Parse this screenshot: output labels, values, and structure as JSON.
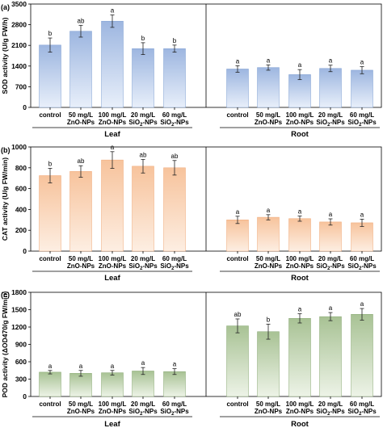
{
  "chart_data": [
    {
      "type": "bar",
      "panel_label": "(a)",
      "ylabel": "SOD activity (U/g FW/h)",
      "ylim": [
        0,
        3500
      ],
      "yticks": [
        0,
        700,
        1400,
        2100,
        2800,
        3500
      ],
      "ytick_labels": [
        "0",
        "700",
        "1400",
        "2100",
        "2800",
        "3500"
      ],
      "bar_color": "#9db6e0",
      "bar_color_light": "#e8effa",
      "bar_edge": "#7f9fd2",
      "groups": [
        {
          "name": "Leaf",
          "categories": [
            {
              "line1": "control",
              "line2": ""
            },
            {
              "line1": "50 mg/L",
              "line2": "ZnO-NPs"
            },
            {
              "line1": "100 mg/L",
              "line2": "ZnO-NPs"
            },
            {
              "line1": "20 mg/L",
              "line2": "SiO",
              "line2_sub": "2",
              "line2_tail": "-NPs"
            },
            {
              "line1": "60 mg/L",
              "line2": "SiO",
              "line2_sub": "2",
              "line2_tail": "-NPs"
            }
          ],
          "values": [
            2110,
            2580,
            2920,
            1990,
            1990
          ],
          "errors": [
            240,
            200,
            210,
            200,
            120
          ],
          "letters": [
            "b",
            "ab",
            "a",
            "b",
            "b"
          ]
        },
        {
          "name": "Root",
          "categories": [
            {
              "line1": "control",
              "line2": ""
            },
            {
              "line1": "50 mg/L",
              "line2": "ZnO-NPs"
            },
            {
              "line1": "100 mg/L",
              "line2": "ZnO-NPs"
            },
            {
              "line1": "20 mg/L",
              "line2": "SiO",
              "line2_sub": "2",
              "line2_tail": "-NPs"
            },
            {
              "line1": "60 mg/L",
              "line2": "SiO",
              "line2_sub": "2",
              "line2_tail": "-NPs"
            }
          ],
          "values": [
            1300,
            1350,
            1110,
            1320,
            1260
          ],
          "errors": [
            110,
            90,
            170,
            110,
            120
          ],
          "letters": [
            "a",
            "a",
            "a",
            "a",
            "a"
          ]
        }
      ]
    },
    {
      "type": "bar",
      "panel_label": "(b)",
      "ylabel": "CAT activity (U/g FW/min)",
      "ylim": [
        0,
        1000
      ],
      "yticks": [
        0,
        200,
        400,
        600,
        800,
        1000
      ],
      "ytick_labels": [
        "0",
        "200",
        "400",
        "600",
        "800",
        "1000"
      ],
      "bar_color": "#f7c39c",
      "bar_color_light": "#fdeee2",
      "bar_edge": "#f0a877",
      "groups": [
        {
          "name": "Leaf",
          "categories": [
            {
              "line1": "control",
              "line2": ""
            },
            {
              "line1": "50 mg/L",
              "line2": "ZnO-NPs"
            },
            {
              "line1": "100 mg/L",
              "line2": "ZnO-NPs"
            },
            {
              "line1": "20 mg/L",
              "line2": "SiO",
              "line2_sub": "2",
              "line2_tail": "-NPs"
            },
            {
              "line1": "60 mg/L",
              "line2": "SiO",
              "line2_sub": "2",
              "line2_tail": "-NPs"
            }
          ],
          "values": [
            725,
            765,
            875,
            815,
            800
          ],
          "errors": [
            70,
            55,
            80,
            65,
            70
          ],
          "letters": [
            "b",
            "ab",
            "a",
            "ab",
            "ab"
          ]
        },
        {
          "name": "Root",
          "categories": [
            {
              "line1": "control",
              "line2": ""
            },
            {
              "line1": "50 mg/L",
              "line2": "ZnO-NPs"
            },
            {
              "line1": "100 mg/L",
              "line2": "ZnO-NPs"
            },
            {
              "line1": "20 mg/L",
              "line2": "SiO",
              "line2_sub": "2",
              "line2_tail": "-NPs"
            },
            {
              "line1": "60 mg/L",
              "line2": "SiO",
              "line2_sub": "2",
              "line2_tail": "-NPs"
            }
          ],
          "values": [
            300,
            325,
            312,
            280,
            272
          ],
          "errors": [
            35,
            25,
            25,
            30,
            35
          ],
          "letters": [
            "a",
            "a",
            "a",
            "a",
            "a"
          ]
        }
      ]
    },
    {
      "type": "bar",
      "panel_label": "(c)",
      "ylabel": "POD activity (ΔOD470/g FW/min)",
      "ylim": [
        0,
        1800
      ],
      "yticks": [
        0,
        300,
        600,
        900,
        1200,
        1500,
        1800
      ],
      "ytick_labels": [
        "0",
        "300",
        "600",
        "900",
        "1200",
        "1500",
        "1800"
      ],
      "bar_color": "#a8c294",
      "bar_color_light": "#edf3e7",
      "bar_edge": "#88a873",
      "groups": [
        {
          "name": "Leaf",
          "categories": [
            {
              "line1": "control",
              "line2": ""
            },
            {
              "line1": "50 mg/L",
              "line2": "ZnO-NPs"
            },
            {
              "line1": "100 mg/L",
              "line2": "ZnO-NPs"
            },
            {
              "line1": "20 mg/L",
              "line2": "SiO",
              "line2_sub": "2",
              "line2_tail": "-NPs"
            },
            {
              "line1": "60 mg/L",
              "line2": "SiO",
              "line2_sub": "2",
              "line2_tail": "-NPs"
            }
          ],
          "values": [
            420,
            400,
            410,
            440,
            430
          ],
          "errors": [
            30,
            50,
            40,
            60,
            50
          ],
          "letters": [
            "a",
            "a",
            "a",
            "a",
            "a"
          ]
        },
        {
          "name": "Root",
          "categories": [
            {
              "line1": "control",
              "line2": ""
            },
            {
              "line1": "50 mg/L",
              "line2": "ZnO-NPs"
            },
            {
              "line1": "100 mg/L",
              "line2": "ZnO-NPs"
            },
            {
              "line1": "20 mg/L",
              "line2": "SiO",
              "line2_sub": "2",
              "line2_tail": "-NPs"
            },
            {
              "line1": "60 mg/L",
              "line2": "SiO",
              "line2_sub": "2",
              "line2_tail": "-NPs"
            }
          ],
          "values": [
            1220,
            1120,
            1350,
            1380,
            1420
          ],
          "errors": [
            120,
            130,
            80,
            70,
            100
          ],
          "letters": [
            "ab",
            "b",
            "a",
            "a",
            "a"
          ]
        }
      ]
    }
  ]
}
